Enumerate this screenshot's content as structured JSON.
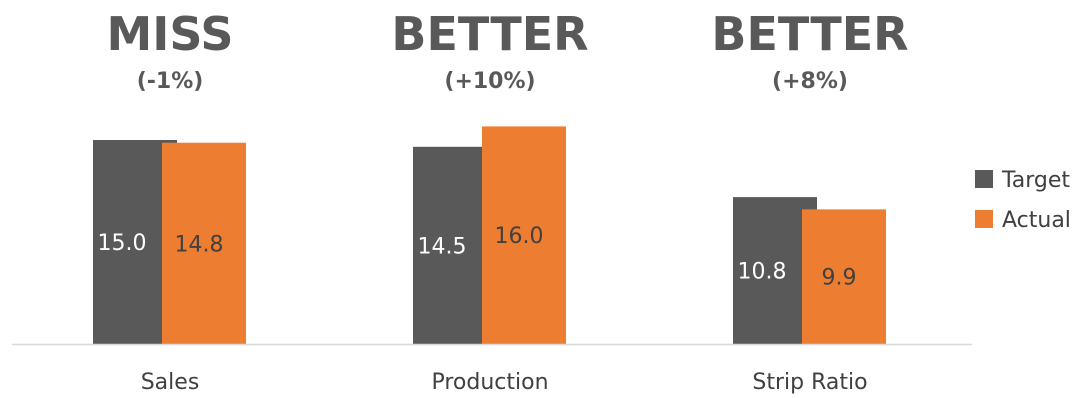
{
  "chart_data": {
    "type": "bar",
    "categories": [
      "Sales",
      "Production",
      "Strip Ratio"
    ],
    "series": [
      {
        "name": "Target",
        "values": [
          15.0,
          14.5,
          10.8
        ],
        "color": "#595959"
      },
      {
        "name": "Actual",
        "values": [
          14.8,
          16.0,
          9.9
        ],
        "color": "#ed7d31"
      }
    ],
    "value_labels": {
      "Target": [
        "15.0",
        "14.5",
        "10.8"
      ],
      "Actual": [
        "14.8",
        "16.0",
        "9.9"
      ]
    },
    "annotations": [
      {
        "status": "MISS",
        "change": "(-1%)"
      },
      {
        "status": "BETTER",
        "change": "(+10%)"
      },
      {
        "status": "BETTER",
        "change": "(+8%)"
      }
    ],
    "ylim": [
      0,
      16.0
    ],
    "grid": false,
    "legend_position": "right",
    "value_label_colors": {
      "Target": "#ffffff",
      "Actual": "#404040"
    },
    "axis_color": "#d9d9d9"
  }
}
